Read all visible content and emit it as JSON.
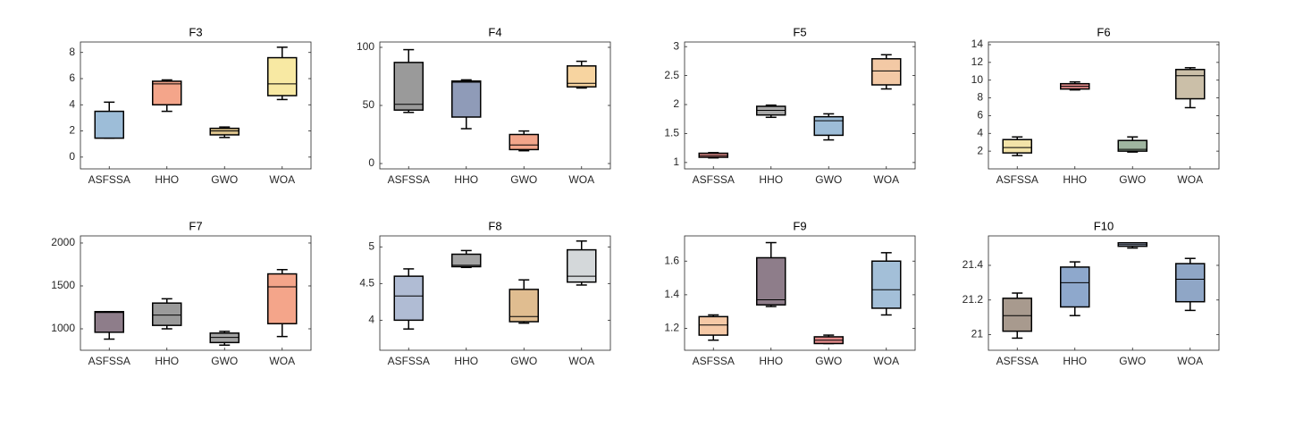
{
  "chart_data": [
    {
      "type": "box",
      "title": "F3",
      "categories": [
        "ASFSSA",
        "HHO",
        "GWO",
        "WOA"
      ],
      "ylim": [
        -0.9,
        8.8
      ],
      "yticks": [
        0,
        2,
        4,
        6,
        8
      ],
      "boxes": [
        {
          "min": 1.45,
          "q1": 1.45,
          "median": 1.45,
          "q3": 3.5,
          "max": 4.2,
          "color": "#9dbdd8"
        },
        {
          "min": 3.5,
          "q1": 4.0,
          "median": 5.6,
          "q3": 5.8,
          "max": 5.9,
          "color": "#f4a58a"
        },
        {
          "min": 1.5,
          "q1": 1.7,
          "median": 2.0,
          "q3": 2.2,
          "max": 2.3,
          "color": "#d9c08a"
        },
        {
          "min": 4.4,
          "q1": 4.7,
          "median": 5.6,
          "q3": 7.6,
          "max": 8.4,
          "color": "#f8e9a3"
        }
      ]
    },
    {
      "type": "box",
      "title": "F4",
      "categories": [
        "ASFSSA",
        "HHO",
        "GWO",
        "WOA"
      ],
      "ylim": [
        -4.6,
        104.6
      ],
      "yticks": [
        0,
        50,
        100
      ],
      "boxes": [
        {
          "min": 44,
          "q1": 46,
          "median": 51,
          "q3": 87,
          "max": 98,
          "color": "#9a9a9a"
        },
        {
          "min": 30,
          "q1": 40,
          "median": 70,
          "q3": 71,
          "max": 72,
          "color": "#8f9bb8"
        },
        {
          "min": 11,
          "q1": 12,
          "median": 16,
          "q3": 25,
          "max": 28,
          "color": "#f2a58a"
        },
        {
          "min": 65,
          "q1": 66,
          "median": 69,
          "q3": 84,
          "max": 88,
          "color": "#f7d4a0"
        }
      ]
    },
    {
      "type": "box",
      "title": "F5",
      "categories": [
        "ASFSSA",
        "HHO",
        "GWO",
        "WOA"
      ],
      "ylim": [
        0.89,
        3.08
      ],
      "yticks": [
        1,
        1.5,
        2,
        2.5,
        3
      ],
      "boxes": [
        {
          "min": 1.08,
          "q1": 1.09,
          "median": 1.12,
          "q3": 1.16,
          "max": 1.17,
          "color": "#e8908e"
        },
        {
          "min": 1.78,
          "q1": 1.82,
          "median": 1.9,
          "q3": 1.97,
          "max": 1.99,
          "color": "#a8a8a8"
        },
        {
          "min": 1.39,
          "q1": 1.47,
          "median": 1.72,
          "q3": 1.79,
          "max": 1.84,
          "color": "#9dbdd8"
        },
        {
          "min": 2.27,
          "q1": 2.34,
          "median": 2.58,
          "q3": 2.79,
          "max": 2.86,
          "color": "#f3c9a5"
        }
      ]
    },
    {
      "type": "box",
      "title": "F6",
      "categories": [
        "ASFSSA",
        "HHO",
        "GWO",
        "WOA"
      ],
      "ylim": [
        0,
        14.3
      ],
      "yticks": [
        2,
        4,
        6,
        8,
        10,
        12,
        14
      ],
      "boxes": [
        {
          "min": 1.5,
          "q1": 1.8,
          "median": 2.4,
          "q3": 3.3,
          "max": 3.6,
          "color": "#f3e3a8"
        },
        {
          "min": 8.9,
          "q1": 9.0,
          "median": 9.3,
          "q3": 9.6,
          "max": 9.8,
          "color": "#e38a8a"
        },
        {
          "min": 1.9,
          "q1": 2.0,
          "median": 2.2,
          "q3": 3.2,
          "max": 3.6,
          "color": "#9fb5a0"
        },
        {
          "min": 6.9,
          "q1": 7.9,
          "median": 10.5,
          "q3": 11.2,
          "max": 11.4,
          "color": "#cbbfa8"
        }
      ]
    },
    {
      "type": "box",
      "title": "F7",
      "categories": [
        "ASFSSA",
        "HHO",
        "GWO",
        "WOA"
      ],
      "ylim": [
        750,
        2083
      ],
      "yticks": [
        1000,
        1500,
        2000
      ],
      "boxes": [
        {
          "min": 880,
          "q1": 960,
          "median": 1190,
          "q3": 1200,
          "max": 1200,
          "color": "#8e7d8a"
        },
        {
          "min": 1000,
          "q1": 1040,
          "median": 1160,
          "q3": 1300,
          "max": 1350,
          "color": "#9a9a9a"
        },
        {
          "min": 810,
          "q1": 840,
          "median": 900,
          "q3": 950,
          "max": 970,
          "color": "#a3a3a3"
        },
        {
          "min": 910,
          "q1": 1060,
          "median": 1490,
          "q3": 1640,
          "max": 1690,
          "color": "#f4a58a"
        }
      ]
    },
    {
      "type": "box",
      "title": "F8",
      "categories": [
        "ASFSSA",
        "HHO",
        "GWO",
        "WOA"
      ],
      "ylim": [
        3.59,
        5.15
      ],
      "yticks": [
        4,
        4.5,
        5
      ],
      "boxes": [
        {
          "min": 3.88,
          "q1": 4.0,
          "median": 4.33,
          "q3": 4.6,
          "max": 4.7,
          "color": "#b0bcd4"
        },
        {
          "min": 4.72,
          "q1": 4.73,
          "median": 4.75,
          "q3": 4.9,
          "max": 4.95,
          "color": "#a3a3a3"
        },
        {
          "min": 3.96,
          "q1": 3.98,
          "median": 4.05,
          "q3": 4.42,
          "max": 4.55,
          "color": "#e0bd90"
        },
        {
          "min": 4.48,
          "q1": 4.52,
          "median": 4.6,
          "q3": 4.96,
          "max": 5.08,
          "color": "#d4d8da"
        }
      ]
    },
    {
      "type": "box",
      "title": "F9",
      "categories": [
        "ASFSSA",
        "HHO",
        "GWO",
        "WOA"
      ],
      "ylim": [
        1.07,
        1.75
      ],
      "yticks": [
        1.2,
        1.4,
        1.6
      ],
      "boxes": [
        {
          "min": 1.13,
          "q1": 1.16,
          "median": 1.22,
          "q3": 1.27,
          "max": 1.28,
          "color": "#f6c9a6"
        },
        {
          "min": 1.33,
          "q1": 1.34,
          "median": 1.37,
          "q3": 1.62,
          "max": 1.71,
          "color": "#8e7d8a"
        },
        {
          "min": 1.11,
          "q1": 1.11,
          "median": 1.13,
          "q3": 1.15,
          "max": 1.16,
          "color": "#e38a8a"
        },
        {
          "min": 1.28,
          "q1": 1.32,
          "median": 1.43,
          "q3": 1.6,
          "max": 1.65,
          "color": "#a3bfd8"
        }
      ]
    },
    {
      "type": "box",
      "title": "F10",
      "categories": [
        "ASFSSA",
        "HHO",
        "GWO",
        "WOA"
      ],
      "ylim": [
        20.91,
        21.57
      ],
      "yticks": [
        21,
        21.2,
        21.4
      ],
      "boxes": [
        {
          "min": 20.98,
          "q1": 21.02,
          "median": 21.11,
          "q3": 21.21,
          "max": 21.24,
          "color": "#a89a8e"
        },
        {
          "min": 21.11,
          "q1": 21.16,
          "median": 21.3,
          "q3": 21.39,
          "max": 21.42,
          "color": "#8ea8cc"
        },
        {
          "min": 21.5,
          "q1": 21.51,
          "median": 21.52,
          "q3": 21.53,
          "max": 21.53,
          "color": "#b0bcd4"
        },
        {
          "min": 21.14,
          "q1": 21.19,
          "median": 21.32,
          "q3": 21.41,
          "max": 21.44,
          "color": "#8fa6c6"
        }
      ]
    }
  ]
}
